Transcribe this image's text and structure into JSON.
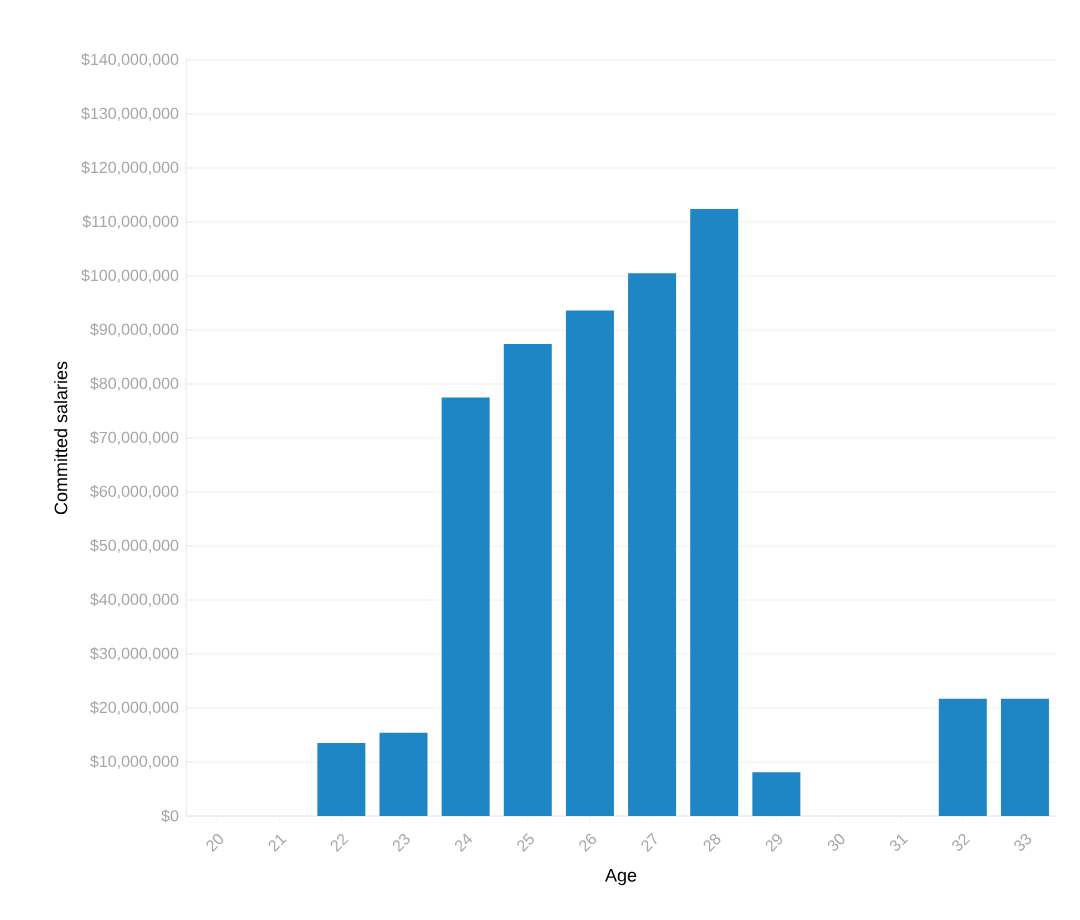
{
  "chart_data": {
    "type": "bar",
    "xlabel": "Age",
    "ylabel": "Committed salaries",
    "categories": [
      "20",
      "21",
      "22",
      "23",
      "24",
      "25",
      "26",
      "27",
      "28",
      "29",
      "30",
      "31",
      "32",
      "33"
    ],
    "values": [
      0,
      0,
      13500000.0,
      15400000.0,
      77500000.0,
      87400000.0,
      93600000.0,
      100500000.0,
      112400000.0,
      8100000.0,
      0,
      0,
      21700000.0,
      21700000.0
    ],
    "color": "#1f86c6",
    "ylim": [
      0,
      140000000
    ],
    "yticks": [
      {
        "value": 0,
        "label": "$0"
      },
      {
        "value": 10000000,
        "label": "$10,000,000"
      },
      {
        "value": 20000000,
        "label": "$20,000,000"
      },
      {
        "value": 30000000,
        "label": "$30,000,000"
      },
      {
        "value": 40000000,
        "label": "$40,000,000"
      },
      {
        "value": 50000000,
        "label": "$50,000,000"
      },
      {
        "value": 60000000,
        "label": "$60,000,000"
      },
      {
        "value": 70000000,
        "label": "$70,000,000"
      },
      {
        "value": 80000000,
        "label": "$80,000,000"
      },
      {
        "value": 90000000,
        "label": "$90,000,000"
      },
      {
        "value": 100000000,
        "label": "$100,000,000"
      },
      {
        "value": 110000000,
        "label": "$110,000,000"
      },
      {
        "value": 120000000,
        "label": "$120,000,000"
      },
      {
        "value": 130000000,
        "label": "$130,000,000"
      },
      {
        "value": 140000000,
        "label": "$140,000,000"
      }
    ],
    "grid": "y"
  }
}
